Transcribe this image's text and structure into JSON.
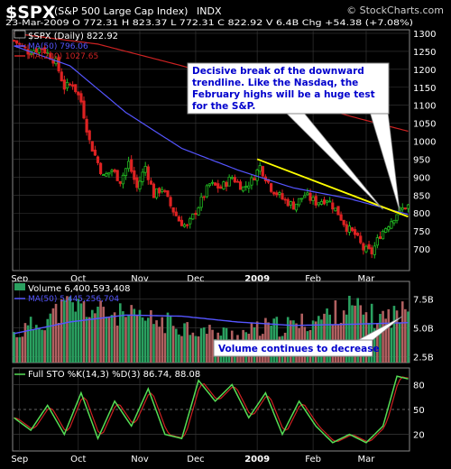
{
  "header": {
    "symbol": "$SPX",
    "name": "(S&P 500 Large Cap Index)",
    "exchange": "INDX",
    "watermark": "© StockCharts.com",
    "quote": "23-Mar-2009    O 772.31  H 823.37  L 772.31  C 822.92  V 6.4B  Chg +54.38 (+7.08%)"
  },
  "colors": {
    "bg": "#000000",
    "panel": "#000000",
    "grid": "#3a3a3a",
    "up": "#22bb22",
    "down": "#dd2222",
    "ma50": "#5555ff",
    "ma200": "#cc2222",
    "trend": "#ffff00",
    "callout_bg": "#ffffff",
    "callout_text": "#0000cc",
    "vol_up": "#2aa060",
    "vol_down": "#b06060",
    "sto_k": "#55dd55",
    "sto_d": "#cc2222",
    "text": "#ffffff"
  },
  "chart_data": [
    {
      "type": "candlestick",
      "name": "price",
      "legend": [
        "$SPX (Daily) 822.92",
        "MA(50) 796.06",
        "MA(200) 1027.65"
      ],
      "x_tick_labels": [
        "Sep",
        "Oct",
        "Nov",
        "Dec",
        "2009",
        "Feb",
        "Mar"
      ],
      "x_tick_days": [
        2,
        23,
        45,
        65,
        87,
        107,
        126
      ],
      "n_days": 142,
      "ylim": [
        640,
        1310
      ],
      "y_ticks": [
        700,
        750,
        800,
        850,
        900,
        950,
        1000,
        1050,
        1100,
        1150,
        1200,
        1250,
        1300
      ],
      "anchors_day": [
        0,
        5,
        10,
        15,
        18,
        21,
        24,
        27,
        29,
        32,
        35,
        38,
        41,
        44,
        47,
        50,
        53,
        56,
        59,
        62,
        66,
        70,
        74,
        78,
        82,
        85,
        88,
        92,
        96,
        100,
        104,
        108,
        112,
        116,
        119,
        122,
        125,
        128,
        131,
        134,
        137,
        141
      ],
      "anchors_close": [
        1280,
        1250,
        1260,
        1220,
        1150,
        1160,
        1110,
        1000,
        960,
        900,
        920,
        890,
        940,
        870,
        930,
        850,
        870,
        820,
        780,
        760,
        820,
        880,
        870,
        900,
        870,
        890,
        930,
        870,
        840,
        820,
        850,
        830,
        840,
        800,
        760,
        740,
        700,
        690,
        740,
        770,
        800,
        822.92
      ],
      "ma50_day": [
        0,
        20,
        40,
        60,
        80,
        100,
        120,
        141
      ],
      "ma50": [
        1265,
        1210,
        1080,
        980,
        920,
        870,
        840,
        796.06
      ],
      "ma200_day": [
        0,
        30,
        60,
        90,
        120,
        141
      ],
      "ma200": [
        1300,
        1270,
        1210,
        1140,
        1070,
        1027.65
      ],
      "trendline": {
        "day": [
          87,
          141
        ],
        "value": [
          950,
          790
        ]
      },
      "annotation": "Decisive break of the downward trendline. Like the Nasdaq, the February highs will be a huge test for the S&P."
    },
    {
      "type": "bar",
      "name": "volume",
      "legend": [
        "Volume 6,400,593,408",
        "MA(50) 5,445,256,704"
      ],
      "ylim": [
        2000000000,
        9000000000
      ],
      "y_ticks": [
        2500000000,
        5000000000,
        7500000000
      ],
      "y_tick_labels": [
        "2.5B",
        "5.0B",
        "7.5B"
      ],
      "anchors_day": [
        0,
        10,
        20,
        30,
        40,
        50,
        60,
        70,
        80,
        90,
        100,
        110,
        120,
        130,
        141
      ],
      "anchors_vol": [
        4400000000,
        5600000000,
        7000000000,
        6400000000,
        6000000000,
        5600000000,
        5200000000,
        4600000000,
        4400000000,
        5000000000,
        5200000000,
        5800000000,
        6800000000,
        5800000000,
        6400000000
      ],
      "ma50_day": [
        0,
        20,
        40,
        60,
        80,
        100,
        120,
        141
      ],
      "ma50": [
        4500000000,
        5500000000,
        6100000000,
        6000000000,
        5500000000,
        5200000000,
        5300000000,
        5445256704
      ],
      "annotation": "Volume continues to decrease"
    },
    {
      "type": "line",
      "name": "stochastic",
      "legend": "Full STO %K(14,3) %D(3) 86.74, 88.08",
      "ylim": [
        0,
        100
      ],
      "y_ticks": [
        20,
        50,
        80
      ],
      "k_day": [
        0,
        6,
        12,
        18,
        24,
        30,
        36,
        42,
        48,
        54,
        60,
        66,
        72,
        78,
        84,
        90,
        96,
        102,
        108,
        114,
        120,
        126,
        132,
        137,
        141
      ],
      "k": [
        40,
        25,
        55,
        20,
        70,
        15,
        60,
        30,
        75,
        20,
        15,
        85,
        60,
        80,
        40,
        70,
        20,
        60,
        30,
        10,
        20,
        10,
        30,
        90,
        86.74
      ],
      "d_last": 88.08
    }
  ]
}
